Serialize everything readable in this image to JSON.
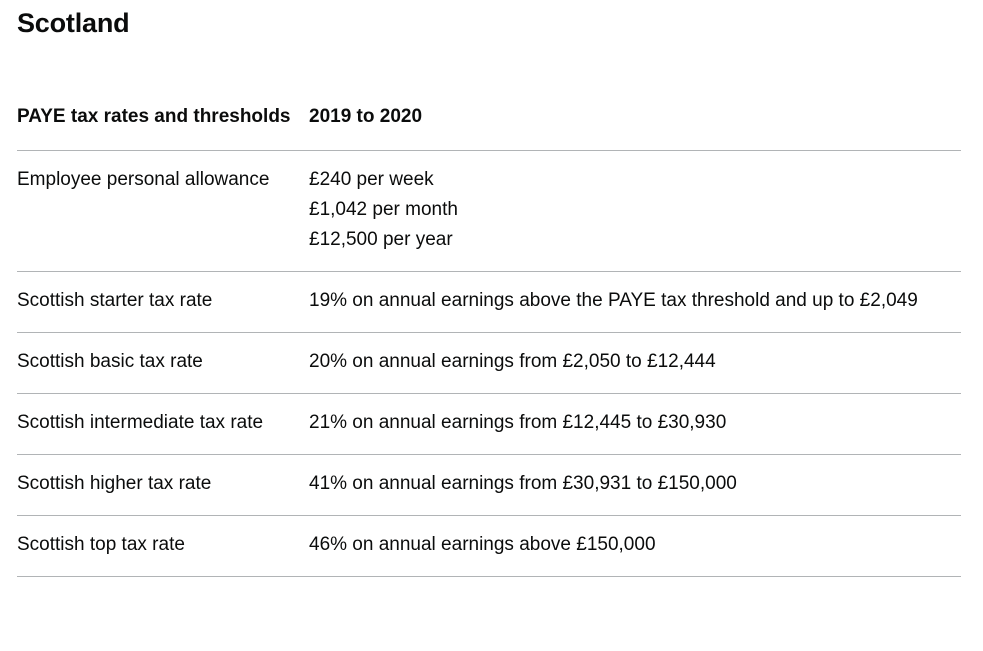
{
  "section": {
    "title": "Scotland"
  },
  "table": {
    "headers": {
      "label": "PAYE tax rates and thresholds",
      "value": "2019 to 2020"
    },
    "rows": [
      {
        "label": "Employee personal allowance",
        "values": [
          "£240 per week",
          "£1,042 per month",
          "£12,500 per year"
        ]
      },
      {
        "label": "Scottish starter tax rate",
        "values": [
          "19% on annual earnings above the PAYE tax threshold and up to £2,049"
        ]
      },
      {
        "label": "Scottish basic tax rate",
        "values": [
          "20% on annual earnings from £2,050 to £12,444"
        ]
      },
      {
        "label": "Scottish intermediate tax rate",
        "values": [
          "21% on annual earnings from £12,445 to £30,930"
        ]
      },
      {
        "label": "Scottish higher tax rate",
        "values": [
          "41% on annual earnings from £30,931 to £150,000"
        ]
      },
      {
        "label": "Scottish top tax rate",
        "values": [
          "46% on annual earnings above £150,000"
        ]
      }
    ]
  }
}
